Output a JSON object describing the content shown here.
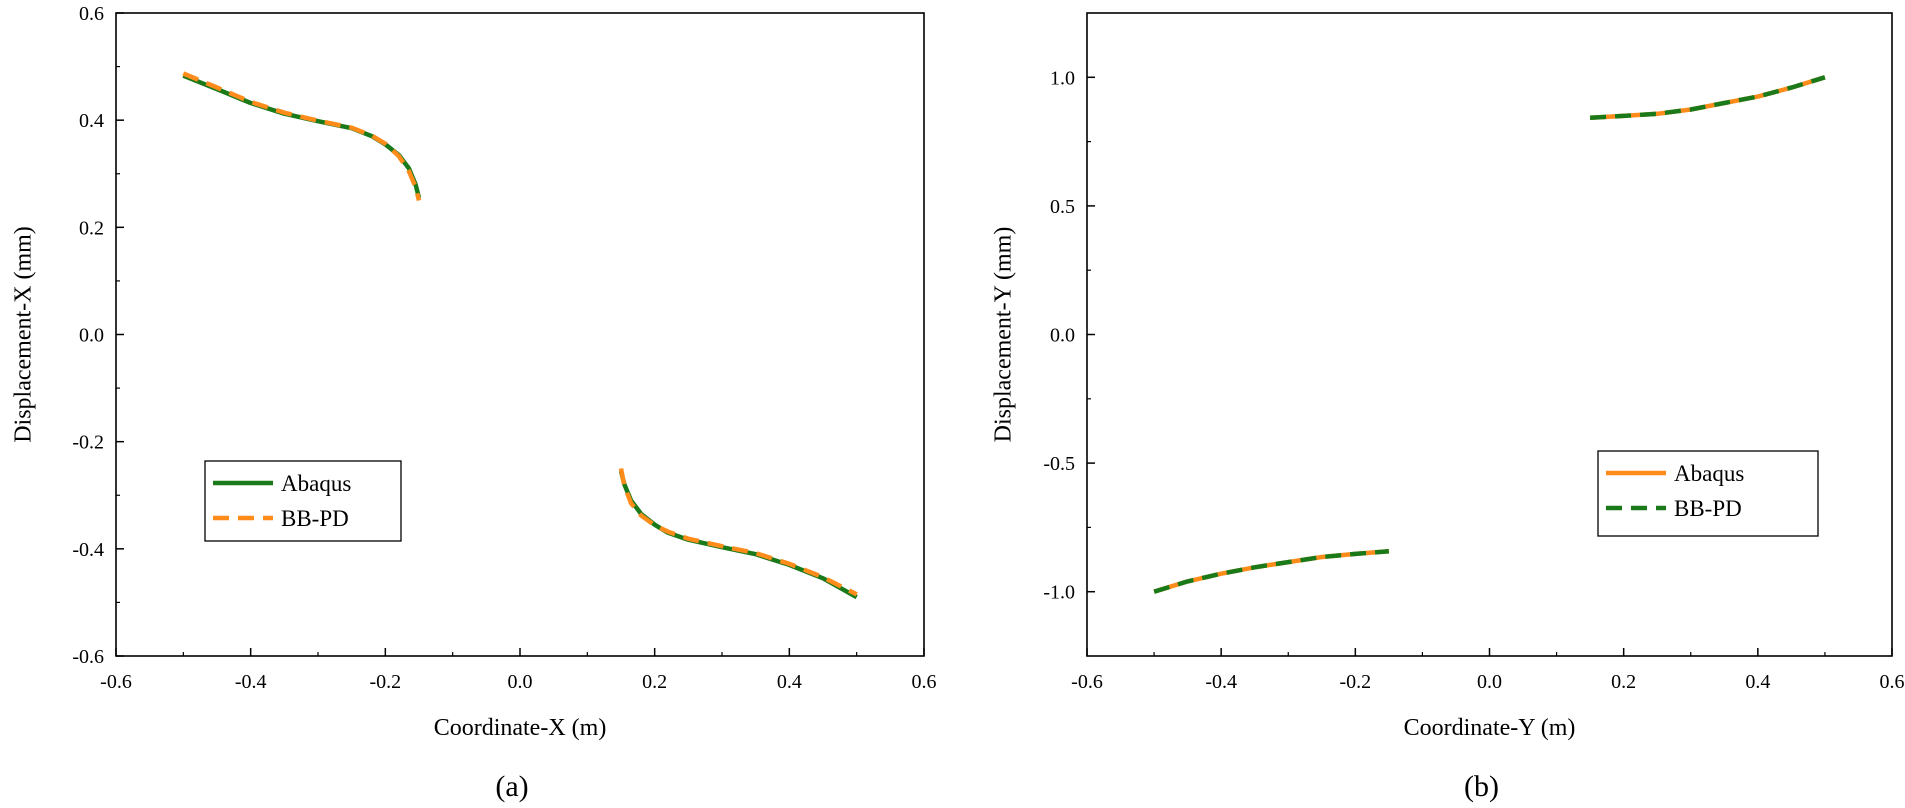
{
  "chart_data": [
    {
      "type": "line",
      "xlabel": "Coordinate-X (m)",
      "ylabel": "Displacement-X (mm)",
      "panel_label": "(a)",
      "xlim": [
        -0.6,
        0.6
      ],
      "ylim": [
        -0.6,
        0.6
      ],
      "xticks": [
        "-0.6",
        "-0.4",
        "-0.2",
        "0.0",
        "0.2",
        "0.4",
        "0.6"
      ],
      "yticks": [
        "0.6",
        "0.4",
        "0.2",
        "0.0",
        "-0.2",
        "-0.4",
        "-0.6"
      ],
      "legend_placement": "lower-left",
      "series": [
        {
          "name": "Abaqus",
          "color": "#1a7a1a",
          "style": "solid",
          "segments": [
            [
              [
                -0.5,
                0.483
              ],
              [
                -0.45,
                0.458
              ],
              [
                -0.4,
                0.432
              ],
              [
                -0.35,
                0.412
              ],
              [
                -0.3,
                0.398
              ],
              [
                -0.25,
                0.385
              ],
              [
                -0.22,
                0.37
              ],
              [
                -0.2,
                0.355
              ],
              [
                -0.18,
                0.335
              ],
              [
                -0.165,
                0.31
              ],
              [
                -0.155,
                0.28
              ],
              [
                -0.15,
                0.255
              ]
            ],
            [
              [
                0.15,
                -0.255
              ],
              [
                0.155,
                -0.28
              ],
              [
                0.165,
                -0.31
              ],
              [
                0.18,
                -0.335
              ],
              [
                0.2,
                -0.355
              ],
              [
                0.22,
                -0.37
              ],
              [
                0.25,
                -0.383
              ],
              [
                0.3,
                -0.397
              ],
              [
                0.35,
                -0.41
              ],
              [
                0.4,
                -0.43
              ],
              [
                0.45,
                -0.455
              ],
              [
                0.5,
                -0.49
              ]
            ]
          ]
        },
        {
          "name": "BB-PD",
          "color": "#ff8c1a",
          "style": "dashed",
          "segments": [
            [
              [
                -0.5,
                0.487
              ],
              [
                -0.45,
                0.461
              ],
              [
                -0.4,
                0.434
              ],
              [
                -0.35,
                0.414
              ],
              [
                -0.3,
                0.399
              ],
              [
                -0.25,
                0.386
              ],
              [
                -0.22,
                0.371
              ],
              [
                -0.2,
                0.356
              ],
              [
                -0.18,
                0.333
              ],
              [
                -0.165,
                0.305
              ],
              [
                -0.155,
                0.275
              ],
              [
                -0.15,
                0.25
              ]
            ],
            [
              [
                0.15,
                -0.25
              ],
              [
                0.155,
                -0.283
              ],
              [
                0.165,
                -0.315
              ],
              [
                0.18,
                -0.338
              ],
              [
                0.2,
                -0.356
              ],
              [
                0.22,
                -0.368
              ],
              [
                0.25,
                -0.381
              ],
              [
                0.3,
                -0.395
              ],
              [
                0.35,
                -0.408
              ],
              [
                0.4,
                -0.428
              ],
              [
                0.45,
                -0.453
              ],
              [
                0.5,
                -0.485
              ]
            ]
          ]
        }
      ]
    },
    {
      "type": "line",
      "xlabel": "Coordinate-Y (m)",
      "ylabel": "Displacement-Y (mm)",
      "panel_label": "(b)",
      "xlim": [
        -0.6,
        0.6
      ],
      "ylim": [
        -1.25,
        1.25
      ],
      "xticks": [
        "-0.6",
        "-0.4",
        "-0.2",
        "0.0",
        "0.2",
        "0.4",
        "0.6"
      ],
      "yticks": [
        "1.0",
        "0.5",
        "0.0",
        "-0.5",
        "-1.0"
      ],
      "legend_placement": "lower-right",
      "series": [
        {
          "name": "Abaqus",
          "color": "#ff8c1a",
          "style": "solid",
          "segments": [
            [
              [
                -0.5,
                -1.0
              ],
              [
                -0.45,
                -0.96
              ],
              [
                -0.4,
                -0.93
              ],
              [
                -0.35,
                -0.905
              ],
              [
                -0.3,
                -0.885
              ],
              [
                -0.25,
                -0.865
              ],
              [
                -0.2,
                -0.853
              ],
              [
                -0.15,
                -0.843
              ]
            ],
            [
              [
                0.15,
                0.843
              ],
              [
                0.2,
                0.85
              ],
              [
                0.25,
                0.858
              ],
              [
                0.3,
                0.875
              ],
              [
                0.35,
                0.9
              ],
              [
                0.4,
                0.925
              ],
              [
                0.45,
                0.96
              ],
              [
                0.5,
                1.0
              ]
            ]
          ]
        },
        {
          "name": "BB-PD",
          "color": "#1a7a1a",
          "style": "dashed",
          "segments": [
            [
              [
                -0.5,
                -1.0
              ],
              [
                -0.45,
                -0.96
              ],
              [
                -0.4,
                -0.93
              ],
              [
                -0.35,
                -0.905
              ],
              [
                -0.3,
                -0.885
              ],
              [
                -0.25,
                -0.865
              ],
              [
                -0.2,
                -0.853
              ],
              [
                -0.15,
                -0.843
              ]
            ],
            [
              [
                0.15,
                0.843
              ],
              [
                0.2,
                0.85
              ],
              [
                0.25,
                0.858
              ],
              [
                0.3,
                0.875
              ],
              [
                0.35,
                0.9
              ],
              [
                0.4,
                0.925
              ],
              [
                0.45,
                0.96
              ],
              [
                0.5,
                1.0
              ]
            ]
          ]
        }
      ]
    }
  ]
}
